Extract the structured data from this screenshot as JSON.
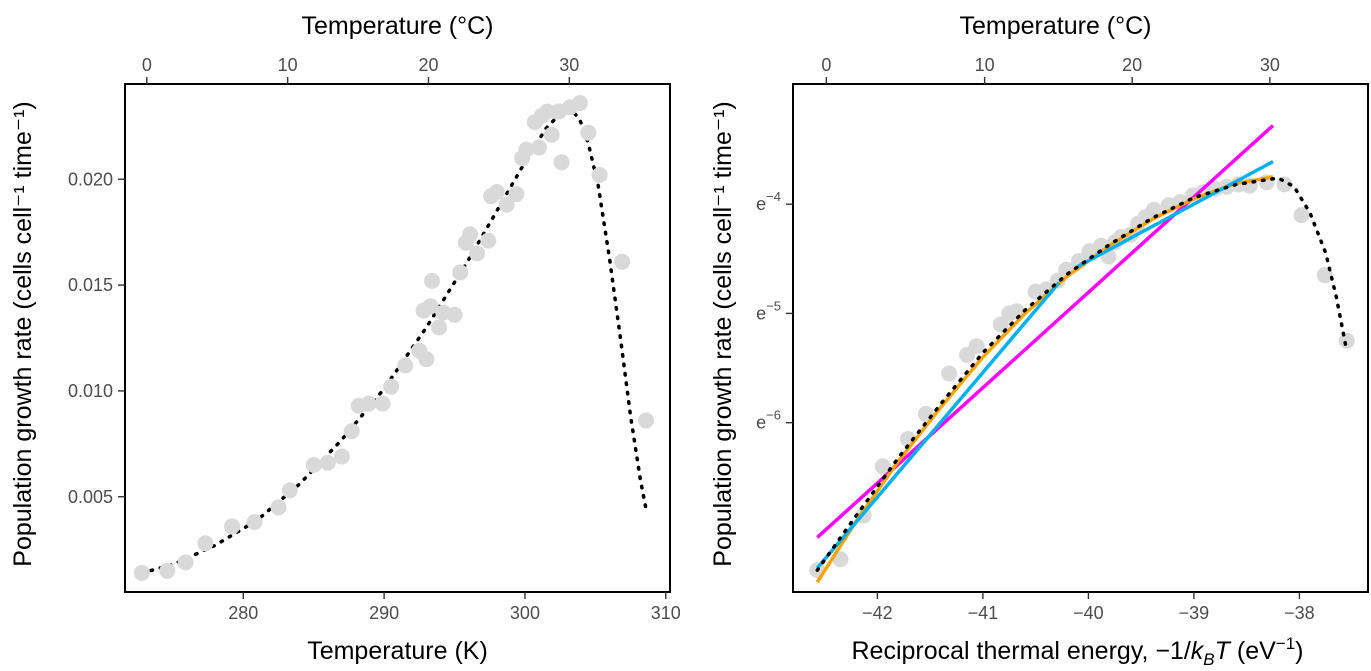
{
  "chart_data": [
    {
      "type": "scatter",
      "xlabel": "Temperature (K)",
      "ylabel": "Population growth rate (cells cell⁻¹ time⁻¹)",
      "top_axis_label": "Temperature (°C)",
      "xlim": [
        271.6,
        310.3
      ],
      "ylim": [
        0.0005,
        0.0245
      ],
      "x_ticks": [
        280,
        290,
        300,
        310
      ],
      "y_ticks": [
        0.005,
        0.01,
        0.015,
        0.02
      ],
      "y_tick_labels": [
        "0.005",
        "0.010",
        "0.015",
        "0.020"
      ],
      "top_ticks_celsius": [
        0,
        10,
        20,
        30
      ],
      "grid": false,
      "points_color": "#d9d9d9",
      "fit_color": "#000000",
      "observations": {
        "x": [
          272.8,
          274.6,
          275.9,
          277.3,
          279.2,
          280.8,
          282.5,
          283.3,
          285.0,
          286.0,
          287.0,
          287.7,
          288.2,
          288.9,
          289.9,
          290.5,
          291.5,
          292.5,
          292.8,
          293.0,
          293.3,
          293.4,
          293.9,
          294.2,
          295.0,
          295.4,
          295.8,
          296.1,
          296.6,
          297.4,
          297.6,
          298.0,
          298.7,
          299.4,
          299.8,
          300.1,
          300.7,
          301.0,
          301.2,
          301.6,
          301.9,
          302.4,
          302.6,
          303.2,
          303.9,
          304.5,
          305.3,
          306.9,
          308.6
        ],
        "y": [
          0.0014,
          0.0015,
          0.0019,
          0.0028,
          0.0036,
          0.0038,
          0.0045,
          0.0053,
          0.0065,
          0.0066,
          0.0069,
          0.0081,
          0.0093,
          0.0094,
          0.0094,
          0.0102,
          0.0112,
          0.0119,
          0.0138,
          0.0115,
          0.014,
          0.0152,
          0.013,
          0.0137,
          0.0136,
          0.0156,
          0.017,
          0.0174,
          0.0165,
          0.0171,
          0.0192,
          0.0194,
          0.0188,
          0.0193,
          0.021,
          0.0214,
          0.0227,
          0.0215,
          0.023,
          0.0232,
          0.0221,
          0.0232,
          0.0208,
          0.0234,
          0.0236,
          0.0222,
          0.0202,
          0.0161,
          0.0086
        ]
      },
      "fit": {
        "x": [
          272.8,
          275,
          278,
          281,
          284,
          287,
          290,
          293,
          296,
          298,
          300,
          301.5,
          302.5,
          303.3,
          303.9,
          304.5,
          305.2,
          306.0,
          306.8,
          307.5,
          308.2,
          308.6
        ],
        "y": [
          0.0014,
          0.0018,
          0.0027,
          0.0039,
          0.0056,
          0.0077,
          0.0101,
          0.013,
          0.0162,
          0.0185,
          0.0208,
          0.0224,
          0.0231,
          0.0233,
          0.0228,
          0.0217,
          0.0197,
          0.0163,
          0.0124,
          0.0088,
          0.0058,
          0.0044
        ]
      }
    },
    {
      "type": "scatter",
      "xlabel_parts": [
        "Reciprocal thermal energy, −1/",
        "k",
        "B",
        "T",
        " (eV",
        "−1",
        ")"
      ],
      "ylabel": "Population growth rate (cells cell⁻¹ time⁻¹)",
      "top_axis_label": "Temperature (°C)",
      "xlim": [
        -42.8,
        -37.35
      ],
      "ylim_ln": [
        -7.55,
        -2.9
      ],
      "y_scale": "natural log",
      "x_ticks": [
        -42,
        -41,
        -40,
        -39,
        -38
      ],
      "x_tick_labels": [
        "−42",
        "−41",
        "−40",
        "−39",
        "−38"
      ],
      "y_ticks_ln": [
        -4,
        -5,
        -6
      ],
      "y_tick_labels": [
        {
          "base": "e",
          "exp": "−4"
        },
        {
          "base": "e",
          "exp": "−5"
        },
        {
          "base": "e",
          "exp": "−6"
        }
      ],
      "top_ticks_celsius": [
        0,
        10,
        20,
        30
      ],
      "grid": false,
      "points_color": "#d9d9d9",
      "observations": {
        "x": [
          -42.57,
          -42.35,
          -42.13,
          -41.95,
          -41.71,
          -41.54,
          -41.32,
          -41.15,
          -41.06,
          -40.83,
          -40.75,
          -40.68,
          -40.5,
          -40.4,
          -40.29,
          -40.21,
          -40.09,
          -39.99,
          -39.88,
          -39.81,
          -39.75,
          -39.69,
          -39.6,
          -39.53,
          -39.46,
          -39.38,
          -39.24,
          -39.13,
          -39.01,
          -38.91,
          -38.8,
          -38.69,
          -38.58,
          -38.47,
          -38.31,
          -38.14,
          -37.98,
          -37.76,
          -37.55
        ],
        "y": [
          -7.35,
          -7.25,
          -6.85,
          -6.4,
          -6.15,
          -5.92,
          -5.55,
          -5.38,
          -5.3,
          -5.1,
          -5.0,
          -4.98,
          -4.8,
          -4.78,
          -4.7,
          -4.6,
          -4.52,
          -4.43,
          -4.38,
          -4.48,
          -4.35,
          -4.3,
          -4.28,
          -4.18,
          -4.12,
          -4.05,
          -4.01,
          -3.98,
          -3.92,
          -3.89,
          -3.86,
          -3.84,
          -3.82,
          -3.83,
          -3.8,
          -3.82,
          -4.1,
          -4.65,
          -5.25
        ]
      },
      "fit": {
        "x": [
          -42.57,
          -42.2,
          -41.8,
          -41.4,
          -41.0,
          -40.6,
          -40.2,
          -39.8,
          -39.4,
          -39.0,
          -38.6,
          -38.2,
          -38.05,
          -37.9,
          -37.75,
          -37.65,
          -37.55
        ],
        "y": [
          -7.35,
          -6.85,
          -6.32,
          -5.83,
          -5.36,
          -4.97,
          -4.64,
          -4.37,
          -4.13,
          -3.94,
          -3.82,
          -3.76,
          -3.84,
          -4.08,
          -4.45,
          -4.85,
          -5.35
        ]
      },
      "lines": [
        {
          "color": "#ff00ff",
          "x": [
            -42.57,
            -38.25
          ],
          "y": [
            -7.05,
            -3.28
          ]
        },
        {
          "color": "#ffa500",
          "x": [
            -42.57,
            -42.2,
            -41.8,
            -41.4,
            -41.0,
            -40.6,
            -40.2,
            -39.8,
            -39.4,
            -39.0,
            -38.6,
            -38.25
          ],
          "y": [
            -7.46,
            -6.9,
            -6.35,
            -5.86,
            -5.4,
            -5.0,
            -4.66,
            -4.38,
            -4.14,
            -3.95,
            -3.81,
            -3.75
          ]
        },
        {
          "color": "#00b0f0",
          "x": [
            -42.57,
            -40.28
          ],
          "y": [
            -7.33,
            -4.72
          ]
        },
        {
          "color": "#00b0f0",
          "x": [
            -40.1,
            -38.25
          ],
          "y": [
            -4.57,
            -3.61
          ]
        }
      ]
    }
  ]
}
